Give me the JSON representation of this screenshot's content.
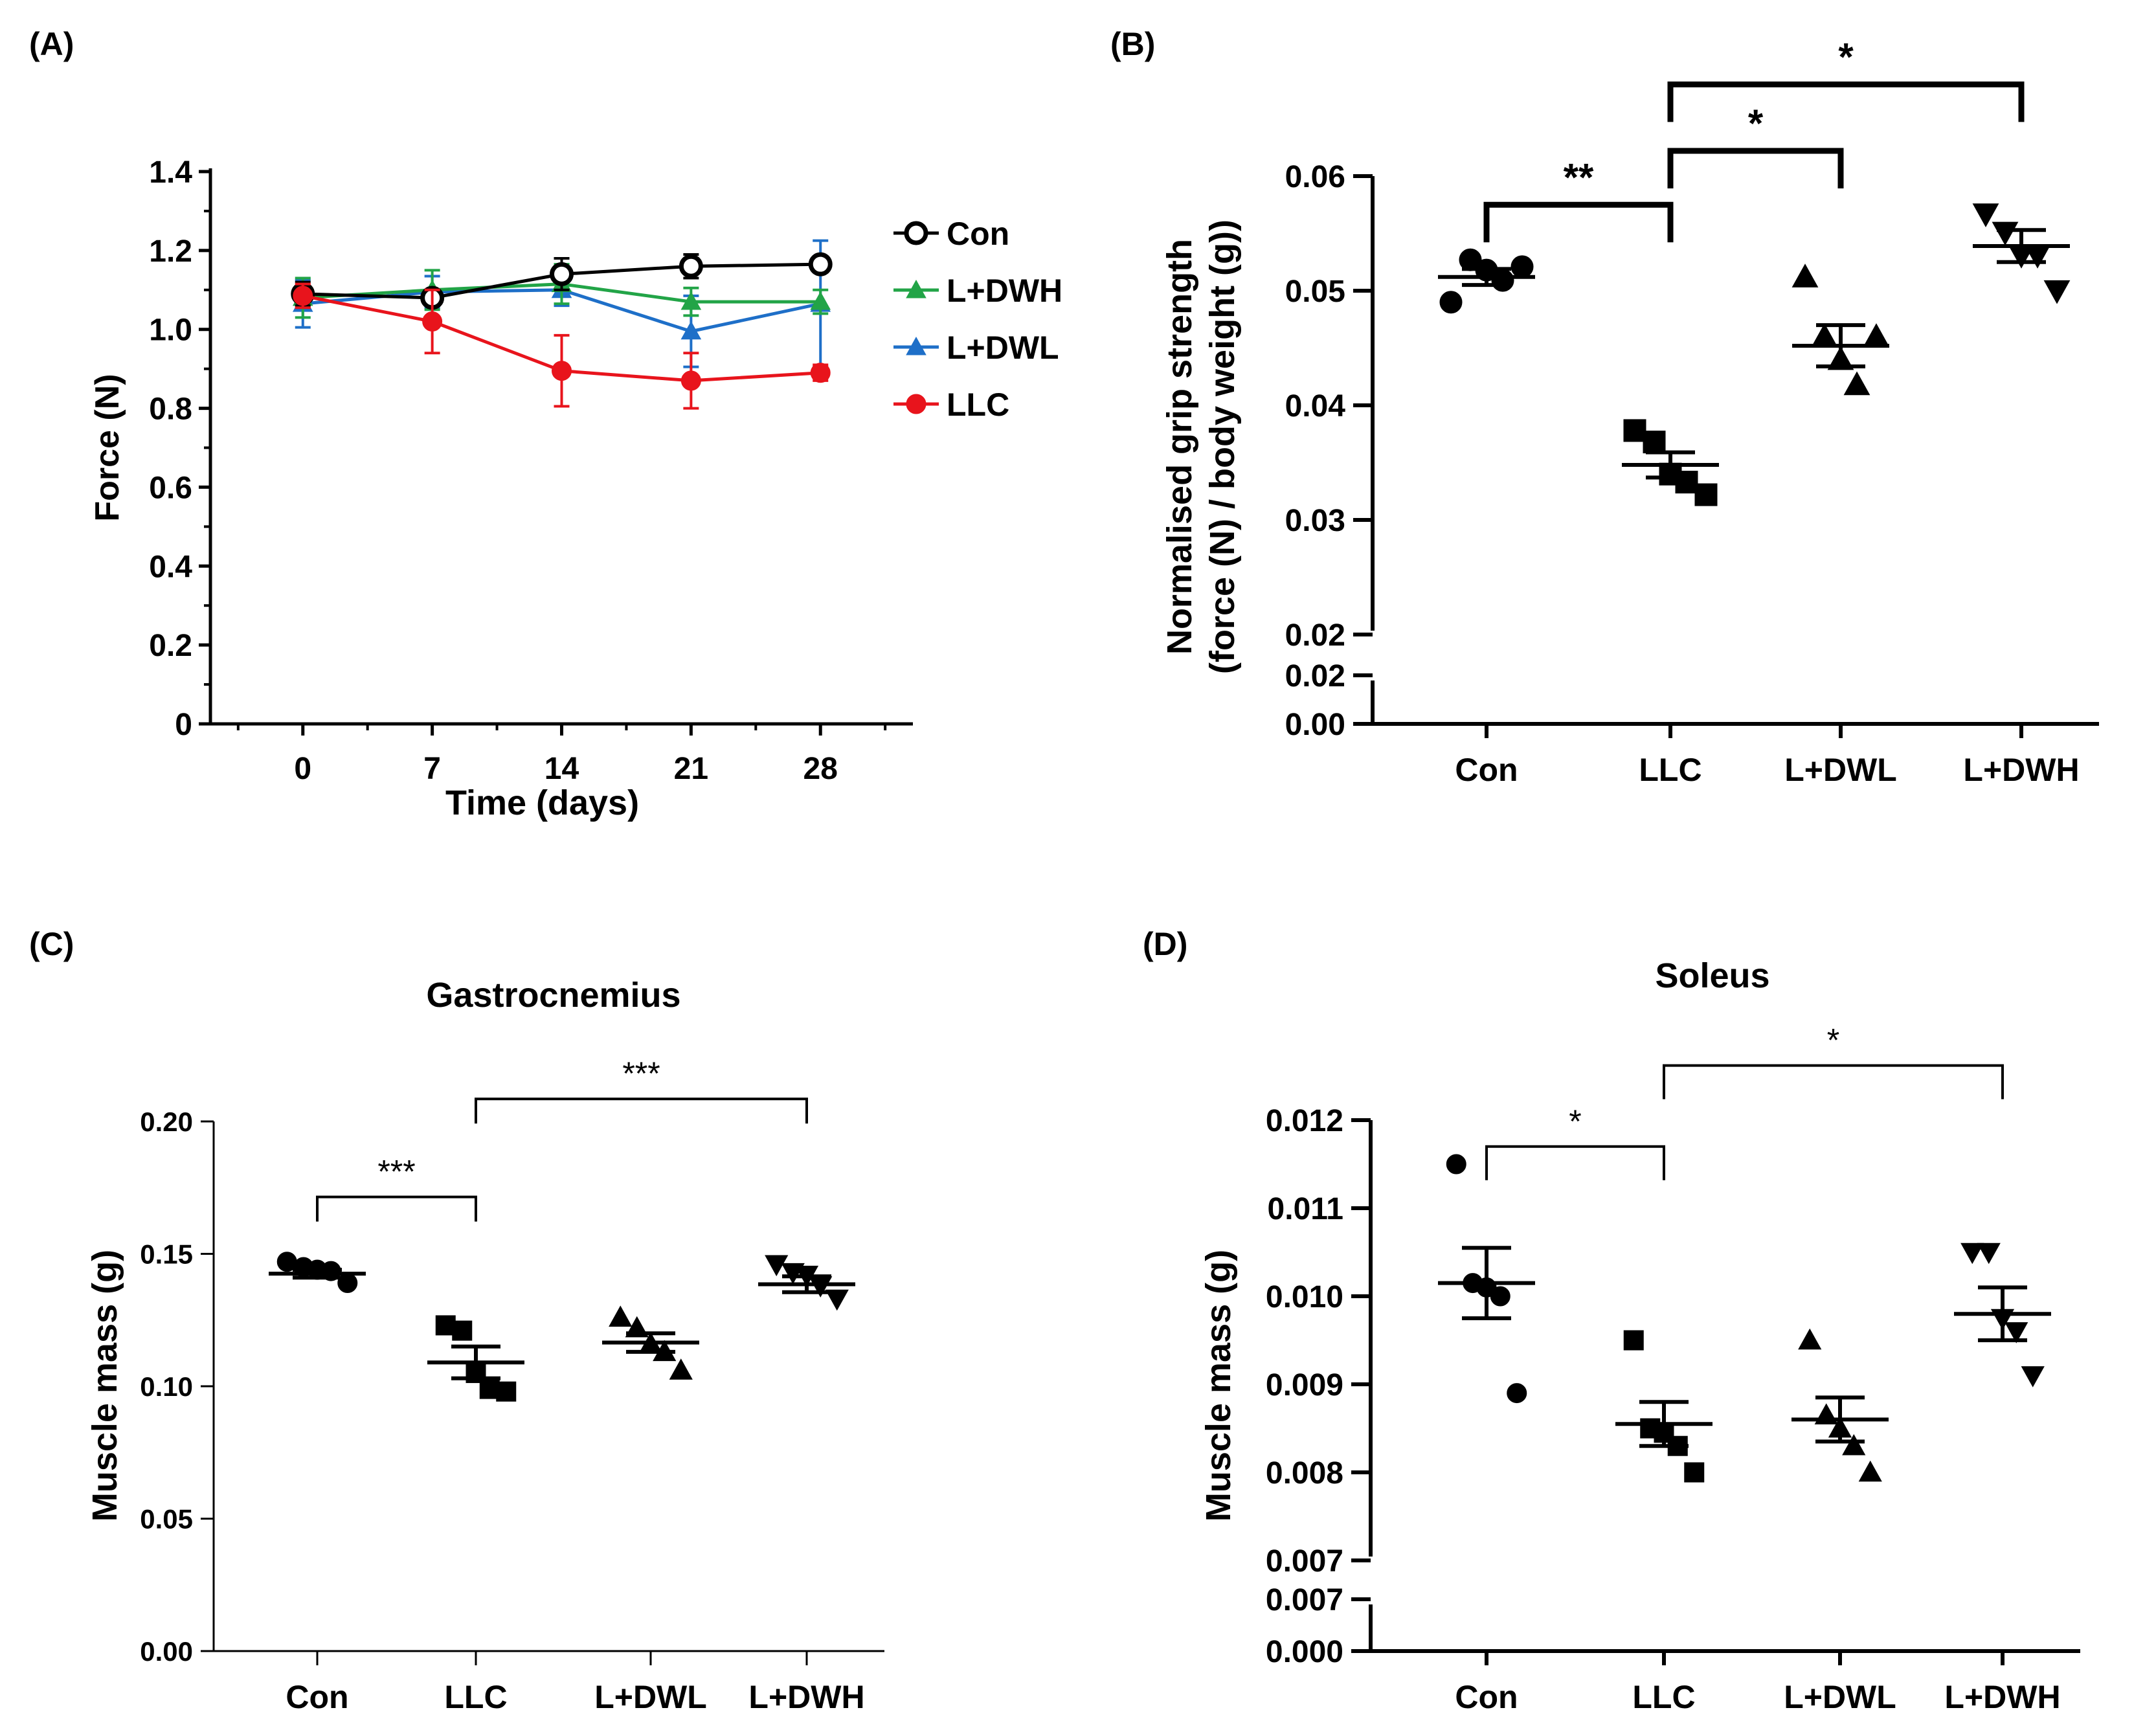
{
  "figure": {
    "panels": [
      "(A)",
      "(B)",
      "(C)",
      "(D)"
    ]
  },
  "chart_data": [
    {
      "id": "A",
      "panel_label": "(A)",
      "type": "line",
      "title": "",
      "xlabel": "Time (days)",
      "ylabel": "Force (N)",
      "x": [
        0,
        7,
        14,
        21,
        28
      ],
      "xticks": [
        "0",
        "7",
        "14",
        "21",
        "28"
      ],
      "xlim": [
        -5,
        33
      ],
      "ylim": [
        0,
        1.4
      ],
      "yticks": [
        "0",
        "0.2",
        "0.4",
        "0.6",
        "0.8",
        "1.0",
        "1.2",
        "1.4"
      ],
      "yticks_values": [
        0,
        0.2,
        0.4,
        0.6,
        0.8,
        1.0,
        1.2,
        1.4
      ],
      "grid": false,
      "legend": "right",
      "series": [
        {
          "name": "Con",
          "color": "#000000",
          "marker": "open-circle",
          "values": [
            1.09,
            1.08,
            1.14,
            1.16,
            1.165
          ],
          "errors": [
            0.03,
            0.02,
            0.04,
            0.03,
            0.02
          ]
        },
        {
          "name": "L+DWH",
          "color": "#22a447",
          "marker": "triangle",
          "values": [
            1.08,
            1.1,
            1.115,
            1.07,
            1.07
          ],
          "errors": [
            0.05,
            0.05,
            0.05,
            0.035,
            0.03
          ]
        },
        {
          "name": "L+DWL",
          "color": "#1e6fc8",
          "marker": "triangle",
          "values": [
            1.065,
            1.095,
            1.1,
            0.995,
            1.065
          ],
          "errors": [
            0.06,
            0.04,
            0.04,
            0.09,
            0.16
          ]
        },
        {
          "name": "LLC",
          "color": "#e8141c",
          "marker": "circle",
          "values": [
            1.085,
            1.02,
            0.895,
            0.87,
            0.89
          ],
          "errors": [
            0.03,
            0.08,
            0.09,
            0.07,
            0.02
          ]
        }
      ]
    },
    {
      "id": "B",
      "panel_label": "(B)",
      "type": "scatter",
      "title": "",
      "xlabel": "",
      "ylabel_lines": [
        "Normalised grip strength",
        "(force (N) / body weight (g))"
      ],
      "categories": [
        "Con",
        "LLC",
        "L+DWL",
        "L+DWH"
      ],
      "markers": [
        "circle",
        "square",
        "triangle",
        "triangle-down"
      ],
      "axis_break": true,
      "ylim_upper": [
        0.02,
        0.06
      ],
      "ylim_lower": [
        0.0,
        0.02
      ],
      "yticks_upper": [
        "0.02",
        "0.03",
        "0.04",
        "0.05",
        "0.06"
      ],
      "yticks_upper_values": [
        0.02,
        0.03,
        0.04,
        0.05,
        0.06
      ],
      "yticks_lower": [
        "0.00",
        "0.02"
      ],
      "yticks_lower_values": [
        0.0,
        0.02
      ],
      "series": [
        {
          "name": "Con",
          "points": [
            0.049,
            0.0527,
            0.0518,
            0.0509,
            0.0521
          ],
          "mean": 0.0512,
          "sem": 0.0007
        },
        {
          "name": "LLC",
          "points": [
            0.0378,
            0.0368,
            0.034,
            0.0333,
            0.0322
          ],
          "mean": 0.0348,
          "sem": 0.0011
        },
        {
          "name": "L+DWL",
          "points": [
            0.0512,
            0.046,
            0.044,
            0.0418,
            0.046
          ],
          "mean": 0.0452,
          "sem": 0.0018
        },
        {
          "name": "L+DWH",
          "points": [
            0.0567,
            0.0551,
            0.0531,
            0.0531,
            0.05
          ],
          "mean": 0.0539,
          "sem": 0.0014
        }
      ],
      "significance": [
        {
          "from": "Con",
          "to": "LLC",
          "label": "**",
          "level": 0.0575
        },
        {
          "from": "LLC",
          "to": "L+DWL",
          "label": "*",
          "level": 0.0622
        },
        {
          "from": "LLC",
          "to": "L+DWH",
          "label": "*",
          "level": 0.068
        }
      ]
    },
    {
      "id": "C",
      "panel_label": "(C)",
      "type": "scatter",
      "title": "Gastrocnemius",
      "xlabel": "",
      "ylabel": "Muscle mass (g)",
      "categories": [
        "Con",
        "LLC",
        "L+DWL",
        "L+DWH"
      ],
      "markers": [
        "circle",
        "square",
        "triangle",
        "triangle-down"
      ],
      "ylim": [
        0,
        0.2
      ],
      "yticks": [
        "0.00",
        "0.05",
        "0.10",
        "0.15",
        "0.20"
      ],
      "yticks_values": [
        0,
        0.05,
        0.1,
        0.15,
        0.2
      ],
      "series": [
        {
          "name": "Con",
          "points": [
            0.147,
            0.145,
            0.144,
            0.1435,
            0.139
          ],
          "mean": 0.1425,
          "sem": 0.0015
        },
        {
          "name": "LLC",
          "points": [
            0.123,
            0.121,
            0.105,
            0.099,
            0.098
          ],
          "mean": 0.109,
          "sem": 0.006
        },
        {
          "name": "L+DWL",
          "points": [
            0.126,
            0.122,
            0.116,
            0.113,
            0.106
          ],
          "mean": 0.1165,
          "sem": 0.0035
        },
        {
          "name": "L+DWH",
          "points": [
            0.146,
            0.143,
            0.142,
            0.138,
            0.133
          ],
          "mean": 0.1385,
          "sem": 0.003
        }
      ],
      "significance": [
        {
          "from": "Con",
          "to": "LLC",
          "label": "***",
          "level": 0.1715
        },
        {
          "from": "LLC",
          "to": "L+DWH",
          "label": "***",
          "level": 0.2085
        }
      ]
    },
    {
      "id": "D",
      "panel_label": "(D)",
      "type": "scatter",
      "title": "Soleus",
      "xlabel": "",
      "ylabel": "Muscle mass (g)",
      "categories": [
        "Con",
        "LLC",
        "L+DWL",
        "L+DWH"
      ],
      "markers": [
        "circle",
        "square",
        "triangle",
        "triangle-down"
      ],
      "axis_break": true,
      "ylim_upper": [
        0.007,
        0.012
      ],
      "ylim_lower": [
        0.0,
        0.007
      ],
      "yticks_upper": [
        "0.007",
        "0.008",
        "0.009",
        "0.010",
        "0.011",
        "0.012"
      ],
      "yticks_upper_values": [
        0.007,
        0.008,
        0.009,
        0.01,
        0.011,
        0.012
      ],
      "yticks_lower": [
        "0.000",
        "0.007"
      ],
      "yticks_lower_values": [
        0.0,
        0.007
      ],
      "series": [
        {
          "name": "Con",
          "points": [
            0.0115,
            0.01015,
            0.0101,
            0.01,
            0.0089
          ],
          "mean": 0.01015,
          "sem": 0.0004
        },
        {
          "name": "LLC",
          "points": [
            0.0095,
            0.0085,
            0.00845,
            0.0083,
            0.008
          ],
          "mean": 0.00855,
          "sem": 0.00025
        },
        {
          "name": "L+DWL",
          "points": [
            0.0095,
            0.00865,
            0.0085,
            0.0083,
            0.008
          ],
          "mean": 0.0086,
          "sem": 0.00025
        },
        {
          "name": "L+DWH",
          "points": [
            0.0105,
            0.0105,
            0.00975,
            0.0096,
            0.0091
          ],
          "mean": 0.0098,
          "sem": 0.0003
        }
      ],
      "significance": [
        {
          "from": "Con",
          "to": "LLC",
          "label": "*",
          "level": 0.0117
        },
        {
          "from": "LLC",
          "to": "L+DWH",
          "label": "*",
          "level": 0.01262
        }
      ]
    }
  ]
}
